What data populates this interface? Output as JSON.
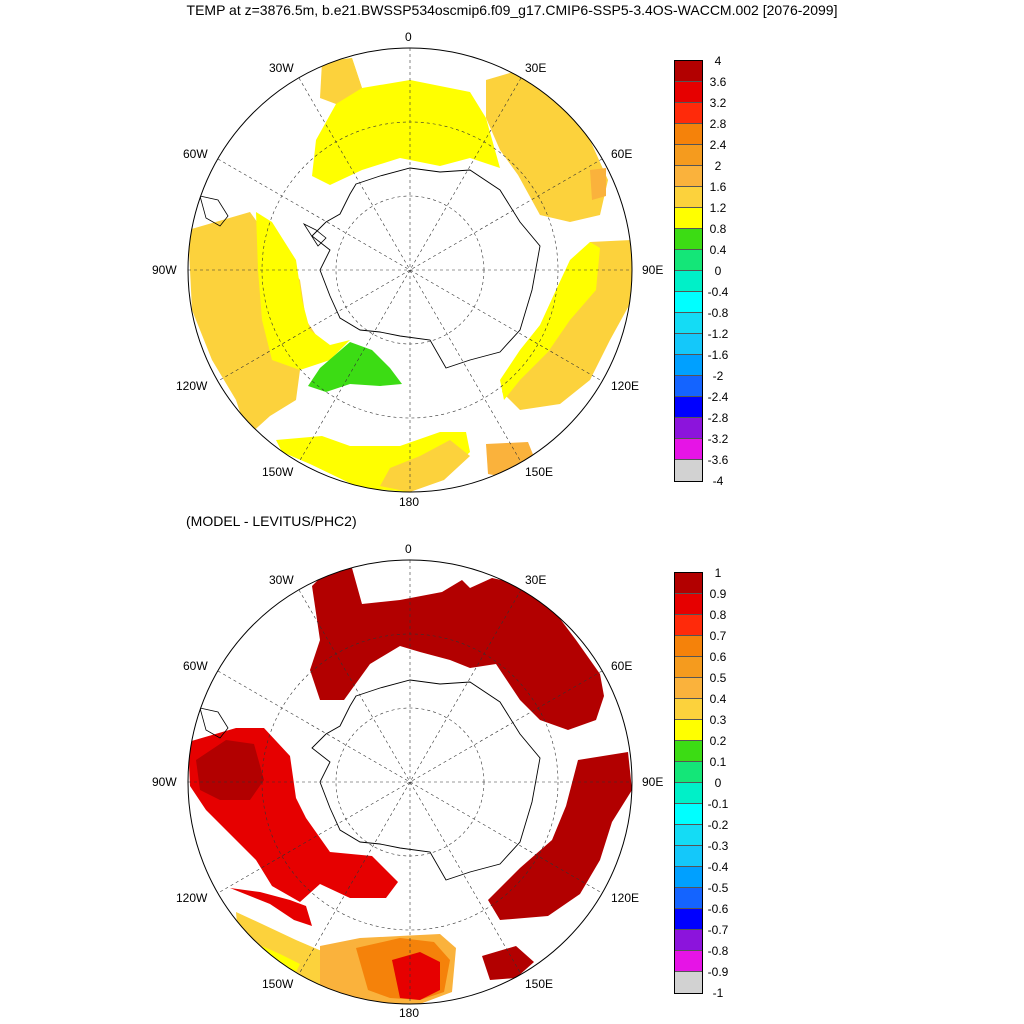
{
  "title": "TEMP at z=3876.5m, b.e21.BWSSP534oscmip6.f09_g17.CMIP6-SSP5-3.4OS-WACCM.002 [2076-2099]",
  "subtitle": "(MODEL - LEVITUS/PHC2)",
  "longitude_labels": [
    "0",
    "30E",
    "60E",
    "90E",
    "120E",
    "150E",
    "180",
    "150W",
    "120W",
    "90W",
    "60W",
    "30W"
  ],
  "top_colorbar": {
    "labels": [
      "4",
      "3.6",
      "3.2",
      "2.8",
      "2.4",
      "2",
      "1.6",
      "1.2",
      "0.8",
      "0.4",
      "0",
      "-0.4",
      "-0.8",
      "-1.2",
      "-1.6",
      "-2",
      "-2.4",
      "-2.8",
      "-3.2",
      "-3.6",
      "-4"
    ],
    "colors": [
      "#b20000",
      "#e60000",
      "#ff2a0a",
      "#f5820a",
      "#f59b1e",
      "#fab23c",
      "#fcd23c",
      "#ffff00",
      "#3cdc14",
      "#14e678",
      "#00f0c8",
      "#00ffff",
      "#14dcf5",
      "#14c8fa",
      "#00a0ff",
      "#1464ff",
      "#0000ff",
      "#8c14dc",
      "#e614e6",
      "#d2d2d2",
      "#787878"
    ]
  },
  "bottom_colorbar": {
    "labels": [
      "1",
      "0.9",
      "0.8",
      "0.7",
      "0.6",
      "0.5",
      "0.4",
      "0.3",
      "0.2",
      "0.1",
      "0",
      "-0.1",
      "-0.2",
      "-0.3",
      "-0.4",
      "-0.5",
      "-0.6",
      "-0.7",
      "-0.8",
      "-0.9",
      "-1"
    ],
    "colors": [
      "#b20000",
      "#e60000",
      "#ff2a0a",
      "#f5820a",
      "#f59b1e",
      "#fab23c",
      "#fcd23c",
      "#ffff00",
      "#3cdc14",
      "#14e678",
      "#00f0c8",
      "#00ffff",
      "#14dcf5",
      "#14c8fa",
      "#00a0ff",
      "#1464ff",
      "#0000ff",
      "#8c14dc",
      "#e614e6",
      "#d2d2d2",
      "#787878"
    ]
  },
  "colors": {
    "yellow": "#ffff00",
    "light_orange": "#fcd23c",
    "orange": "#fab23c",
    "green": "#3cdc14",
    "dark_red": "#b20000",
    "red": "#e60000"
  }
}
